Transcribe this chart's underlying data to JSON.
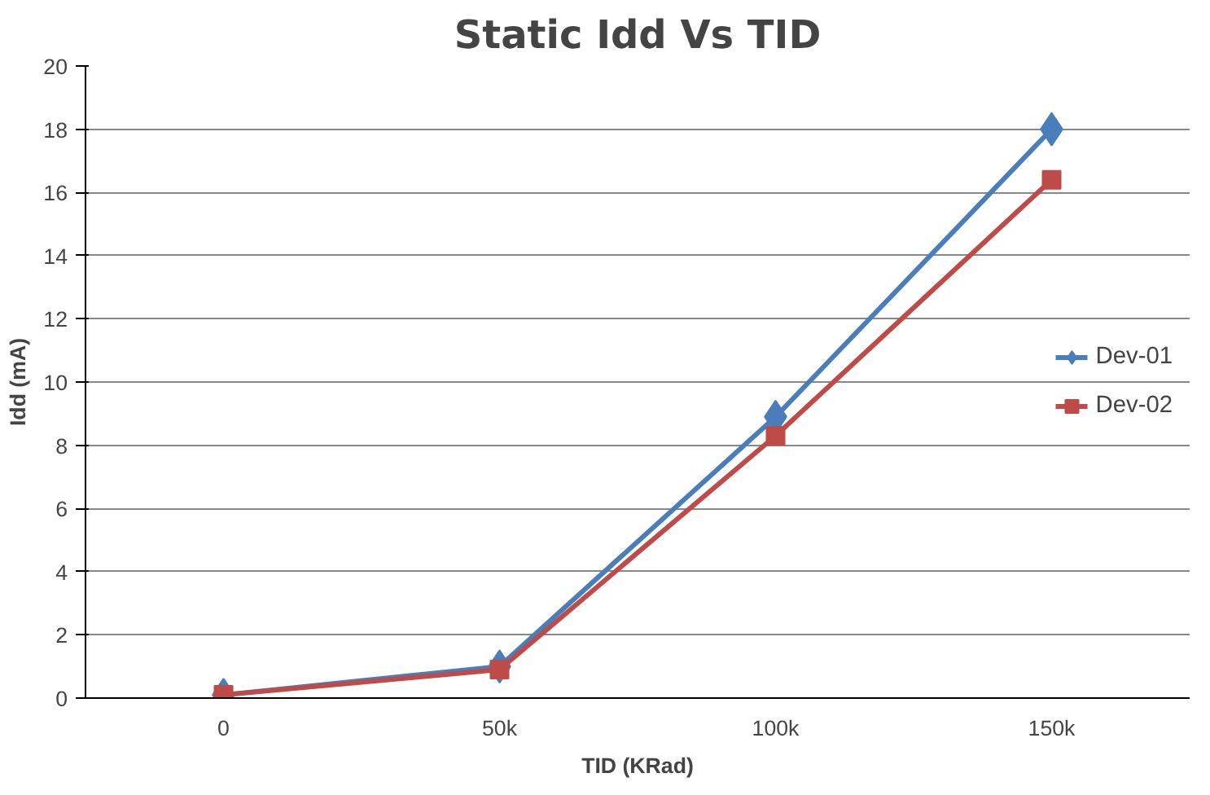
{
  "chart_data": {
    "type": "line",
    "title": "Static Idd Vs TID",
    "xlabel": "TID (KRad)",
    "ylabel": "Idd (mA)",
    "categories": [
      "0",
      "50k",
      "100k",
      "150k"
    ],
    "series": [
      {
        "name": "Dev-01",
        "color": "#4a7ebb",
        "marker": "diamond",
        "values": [
          0.1,
          1.0,
          8.9,
          18.0
        ]
      },
      {
        "name": "Dev-02",
        "color": "#be4b48",
        "marker": "square",
        "values": [
          0.1,
          0.9,
          8.3,
          16.4
        ]
      }
    ],
    "ylim": [
      0,
      20
    ],
    "yticks": [
      0,
      2,
      4,
      6,
      8,
      10,
      12,
      14,
      16,
      18,
      20
    ],
    "grid": "y",
    "legend": "right",
    "line_style": "solid"
  }
}
